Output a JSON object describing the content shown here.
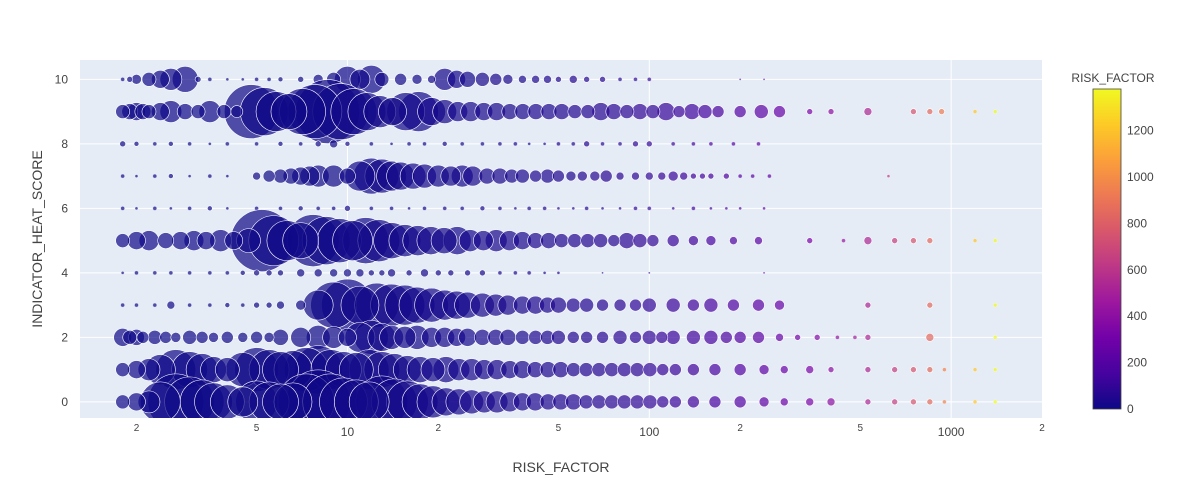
{
  "chart_data": {
    "type": "scatter",
    "subtype": "bubble",
    "title": "",
    "xlabel": "RISK_FACTOR",
    "ylabel": "INDICATOR_HEAT_SCORE",
    "x_scale": "log",
    "xlim": [
      1.3,
      2000
    ],
    "ylim": [
      -0.5,
      10.6
    ],
    "grid": true,
    "x_major_ticks": [
      10,
      100,
      1000
    ],
    "x_major_tick_labels": [
      "10",
      "100",
      "1000"
    ],
    "x_minor_ticks": [
      2,
      5,
      20,
      50,
      200,
      500,
      2000
    ],
    "x_minor_tick_labels": [
      "2",
      "5",
      "2",
      "5",
      "2",
      "5",
      "2"
    ],
    "y_ticks": [
      0,
      2,
      4,
      6,
      8,
      10
    ],
    "y_tick_labels": [
      "0",
      "2",
      "4",
      "6",
      "8",
      "10"
    ],
    "colorbar": {
      "title": "RISK_FACTOR",
      "range": [
        0,
        1380
      ],
      "ticks": [
        0,
        200,
        400,
        600,
        800,
        1000,
        1200
      ],
      "tick_labels": [
        "0",
        "200",
        "400",
        "600",
        "800",
        "1000",
        "1200"
      ],
      "colorscale": [
        "#0d0887",
        "#46039f",
        "#7201a8",
        "#9c179e",
        "#bd3786",
        "#d8576b",
        "#ed7953",
        "#fb9f3a",
        "#fdca26",
        "#f0f921"
      ]
    },
    "series": [
      {
        "y": 10,
        "x": [
          1.8,
          1.9,
          2.0,
          2.2,
          2.4,
          2.6,
          2.9,
          3.2,
          3.5,
          4.0,
          4.5,
          5.0,
          5.5,
          6.0,
          7.0,
          8.0,
          9.0,
          10,
          11,
          12,
          13,
          15,
          17,
          19,
          21,
          23,
          25,
          28,
          31,
          34,
          38,
          42,
          46,
          50,
          56,
          62,
          70,
          80,
          90,
          100,
          200,
          240
        ],
        "size": [
          4,
          6,
          10,
          14,
          18,
          22,
          26,
          6,
          4,
          3,
          3,
          4,
          4,
          5,
          6,
          10,
          14,
          26,
          20,
          28,
          14,
          12,
          10,
          8,
          22,
          18,
          16,
          14,
          12,
          10,
          8,
          8,
          8,
          6,
          8,
          6,
          6,
          4,
          4,
          4,
          2,
          2
        ]
      },
      {
        "y": 9,
        "x": [
          1.8,
          1.9,
          2.0,
          2.1,
          2.2,
          2.4,
          2.6,
          2.9,
          3.2,
          3.5,
          3.9,
          4.3,
          4.8,
          5.3,
          5.8,
          6.4,
          7.1,
          7.8,
          8.6,
          9.5,
          10.5,
          11.6,
          12.8,
          14.1,
          15.6,
          17.2,
          19.0,
          21.0,
          23.2,
          25.6,
          28.3,
          31.2,
          34.5,
          38.1,
          42.1,
          46.5,
          51.3,
          56.7,
          62.6,
          69.1,
          76.3,
          84.3,
          93.1,
          102.8,
          113.6,
          125.4,
          138.5,
          153,
          169,
          200,
          235,
          270,
          340,
          400,
          530,
          750,
          850,
          930,
          1200,
          1400
        ],
        "size": [
          14,
          16,
          18,
          16,
          14,
          18,
          22,
          16,
          14,
          22,
          14,
          12,
          54,
          48,
          40,
          36,
          46,
          54,
          64,
          56,
          46,
          38,
          32,
          28,
          38,
          40,
          28,
          24,
          20,
          20,
          18,
          18,
          16,
          16,
          16,
          16,
          16,
          14,
          14,
          18,
          16,
          14,
          16,
          14,
          18,
          12,
          16,
          14,
          12,
          12,
          14,
          12,
          6,
          6,
          8,
          6,
          6,
          6,
          4,
          4
        ]
      },
      {
        "y": 8,
        "x": [
          1.8,
          2.0,
          2.3,
          2.6,
          3.0,
          3.5,
          4.0,
          5.0,
          6.0,
          7.0,
          8.0,
          9.0,
          10,
          12,
          14,
          16,
          18,
          21,
          24,
          28,
          32,
          36,
          40,
          45,
          50,
          56,
          62,
          70,
          80,
          90,
          100,
          120,
          140,
          160,
          190,
          230
        ],
        "size": [
          6,
          5,
          4,
          5,
          4,
          3,
          4,
          4,
          5,
          4,
          6,
          8,
          5,
          4,
          3,
          4,
          4,
          5,
          4,
          4,
          4,
          4,
          3,
          3,
          4,
          4,
          6,
          4,
          4,
          6,
          6,
          4,
          4,
          4,
          4,
          4
        ]
      },
      {
        "y": 7,
        "x": [
          1.8,
          2.0,
          2.3,
          2.6,
          3.0,
          3.5,
          4.0,
          5.0,
          5.5,
          6.0,
          6.5,
          7.0,
          7.5,
          8.0,
          9.0,
          10,
          11,
          12,
          13,
          14,
          15,
          16.5,
          18,
          20,
          22,
          24,
          26,
          29,
          32,
          35,
          38,
          42,
          46,
          50,
          55,
          60,
          66,
          72,
          80,
          90,
          100,
          110,
          120,
          130,
          140,
          150,
          160,
          180,
          200,
          220,
          250,
          620
        ],
        "size": [
          4,
          3,
          4,
          5,
          3,
          4,
          3,
          8,
          12,
          14,
          16,
          18,
          20,
          22,
          22,
          16,
          30,
          36,
          34,
          30,
          28,
          26,
          24,
          22,
          20,
          22,
          20,
          16,
          16,
          14,
          14,
          12,
          14,
          12,
          10,
          10,
          10,
          12,
          8,
          8,
          8,
          8,
          10,
          8,
          6,
          6,
          6,
          6,
          4,
          4,
          4,
          3
        ]
      },
      {
        "y": 6,
        "x": [
          1.8,
          2.0,
          2.3,
          2.6,
          3.0,
          3.5,
          4.0,
          5.0,
          6.0,
          7.0,
          8.0,
          9.0,
          10,
          12,
          14,
          16,
          18,
          21,
          24,
          28,
          32,
          36,
          40,
          45,
          50,
          56,
          62,
          70,
          80,
          90,
          100,
          120,
          140,
          160,
          180,
          200,
          240
        ],
        "size": [
          4,
          3,
          4,
          3,
          4,
          5,
          3,
          4,
          4,
          5,
          4,
          4,
          6,
          4,
          4,
          3,
          4,
          4,
          4,
          5,
          4,
          3,
          4,
          4,
          3,
          3,
          4,
          3,
          3,
          4,
          4,
          3,
          4,
          3,
          3,
          3,
          3
        ]
      },
      {
        "y": 5,
        "x": [
          1.8,
          2.0,
          2.2,
          2.5,
          2.8,
          3.1,
          3.4,
          3.8,
          4.2,
          4.7,
          5.2,
          5.7,
          6.3,
          7.0,
          7.7,
          8.5,
          9.4,
          10.4,
          11.5,
          12.7,
          14.0,
          15.5,
          17.1,
          18.9,
          20.9,
          23.1,
          25.5,
          28.2,
          31.1,
          34.4,
          38.0,
          42.0,
          46.4,
          51.2,
          56.6,
          62.5,
          69.0,
          76.3,
          84.2,
          93.1,
          102.8,
          120,
          140,
          160,
          190,
          230,
          340,
          440,
          530,
          650,
          750,
          850,
          1200,
          1400
        ],
        "size": [
          14,
          18,
          20,
          16,
          18,
          20,
          18,
          22,
          18,
          24,
          62,
          50,
          40,
          36,
          52,
          48,
          44,
          40,
          46,
          42,
          36,
          32,
          30,
          28,
          26,
          28,
          22,
          20,
          22,
          20,
          18,
          16,
          16,
          14,
          14,
          14,
          14,
          12,
          16,
          14,
          12,
          12,
          10,
          10,
          8,
          8,
          6,
          4,
          8,
          6,
          6,
          6,
          4,
          4
        ]
      },
      {
        "y": 4,
        "x": [
          1.8,
          2.0,
          2.3,
          2.6,
          3.0,
          3.5,
          4.0,
          4.5,
          5.0,
          5.5,
          6.0,
          7.0,
          8.0,
          9.0,
          10,
          11,
          12,
          13,
          14,
          16,
          18,
          20,
          22,
          25,
          28,
          32,
          36,
          40,
          45,
          50,
          70,
          100,
          240
        ],
        "size": [
          3,
          4,
          4,
          4,
          4,
          4,
          4,
          5,
          6,
          6,
          6,
          8,
          8,
          8,
          8,
          8,
          6,
          6,
          8,
          6,
          8,
          6,
          6,
          6,
          6,
          4,
          4,
          4,
          3,
          3,
          2,
          2,
          2
        ]
      },
      {
        "y": 3,
        "x": [
          1.8,
          2.0,
          2.3,
          2.6,
          3.0,
          3.5,
          4.0,
          4.5,
          5.0,
          5.5,
          6.0,
          7.0,
          8.0,
          9.0,
          10,
          11,
          12.5,
          14,
          15.5,
          17,
          19,
          21,
          23,
          25,
          28,
          31,
          34,
          38,
          42,
          46,
          50,
          56,
          62,
          70,
          80,
          90,
          100,
          120,
          140,
          160,
          190,
          230,
          270,
          530,
          850,
          1400
        ],
        "size": [
          4,
          4,
          4,
          8,
          4,
          4,
          5,
          4,
          6,
          6,
          8,
          10,
          30,
          46,
          52,
          38,
          44,
          42,
          40,
          36,
          34,
          30,
          28,
          26,
          24,
          22,
          20,
          18,
          18,
          16,
          16,
          14,
          14,
          12,
          12,
          12,
          14,
          14,
          12,
          14,
          12,
          12,
          10,
          6,
          6,
          4
        ]
      },
      {
        "y": 2,
        "x": [
          1.8,
          1.9,
          2.0,
          2.1,
          2.3,
          2.5,
          2.7,
          3.0,
          3.3,
          3.6,
          4.0,
          4.5,
          5.0,
          5.5,
          6.0,
          7.0,
          8.0,
          9.0,
          10,
          11,
          12,
          13,
          14,
          15.5,
          17,
          19,
          21,
          23,
          25,
          28,
          31,
          34,
          38,
          42,
          46,
          50,
          56,
          62,
          70,
          80,
          90,
          100,
          110,
          120,
          140,
          160,
          180,
          200,
          230,
          270,
          310,
          360,
          420,
          480,
          530,
          850,
          1400
        ],
        "size": [
          18,
          14,
          16,
          12,
          14,
          12,
          10,
          14,
          12,
          10,
          12,
          10,
          12,
          10,
          16,
          20,
          24,
          22,
          18,
          30,
          34,
          28,
          24,
          22,
          24,
          20,
          20,
          18,
          18,
          16,
          16,
          16,
          14,
          14,
          14,
          14,
          12,
          12,
          12,
          14,
          12,
          14,
          12,
          14,
          14,
          14,
          12,
          12,
          12,
          8,
          6,
          6,
          4,
          4,
          6,
          8,
          4
        ]
      },
      {
        "y": 1,
        "x": [
          1.8,
          2.0,
          2.2,
          2.4,
          2.7,
          3.0,
          3.3,
          3.6,
          4.0,
          4.5,
          5.0,
          5.5,
          6.0,
          6.6,
          7.3,
          8.0,
          8.8,
          9.7,
          10.7,
          11.8,
          13.0,
          14.3,
          15.8,
          17.4,
          19.2,
          21.2,
          23.4,
          25.8,
          28.4,
          31.3,
          34.5,
          38.0,
          41.9,
          46.2,
          50.9,
          56.1,
          61.8,
          68.1,
          75.1,
          82.7,
          91.2,
          100.5,
          110.8,
          122,
          140,
          165,
          200,
          240,
          280,
          340,
          400,
          530,
          650,
          750,
          850,
          950,
          1200,
          1400
        ],
        "size": [
          14,
          18,
          22,
          30,
          40,
          36,
          32,
          26,
          24,
          34,
          44,
          40,
          36,
          38,
          44,
          48,
          40,
          36,
          34,
          40,
          36,
          32,
          28,
          26,
          24,
          26,
          22,
          22,
          20,
          20,
          18,
          18,
          16,
          16,
          16,
          14,
          14,
          14,
          14,
          14,
          14,
          14,
          12,
          12,
          12,
          12,
          12,
          10,
          8,
          8,
          6,
          6,
          6,
          6,
          6,
          4,
          4,
          4
        ]
      },
      {
        "y": 0,
        "x": [
          1.8,
          2.0,
          2.2,
          2.4,
          2.7,
          3.0,
          3.3,
          3.6,
          4.0,
          4.5,
          5.0,
          5.5,
          6.0,
          6.6,
          7.3,
          8.0,
          8.8,
          9.7,
          10.7,
          11.8,
          13.0,
          14.3,
          15.8,
          17.4,
          19.2,
          21.2,
          23.4,
          25.8,
          28.4,
          31.3,
          34.5,
          38.0,
          41.9,
          46.2,
          50.9,
          56.1,
          61.8,
          68.1,
          75.1,
          82.7,
          91.2,
          100.5,
          110.8,
          122,
          140,
          165,
          200,
          240,
          280,
          340,
          400,
          530,
          650,
          750,
          850,
          950,
          1200,
          1400
        ],
        "size": [
          14,
          18,
          22,
          40,
          56,
          50,
          44,
          38,
          34,
          30,
          42,
          40,
          36,
          38,
          56,
          64,
          56,
          48,
          44,
          40,
          52,
          46,
          42,
          36,
          32,
          28,
          26,
          24,
          22,
          22,
          20,
          18,
          18,
          16,
          16,
          16,
          14,
          14,
          14,
          14,
          14,
          14,
          12,
          12,
          12,
          12,
          12,
          10,
          8,
          8,
          8,
          6,
          6,
          6,
          6,
          4,
          4,
          4
        ]
      }
    ]
  }
}
